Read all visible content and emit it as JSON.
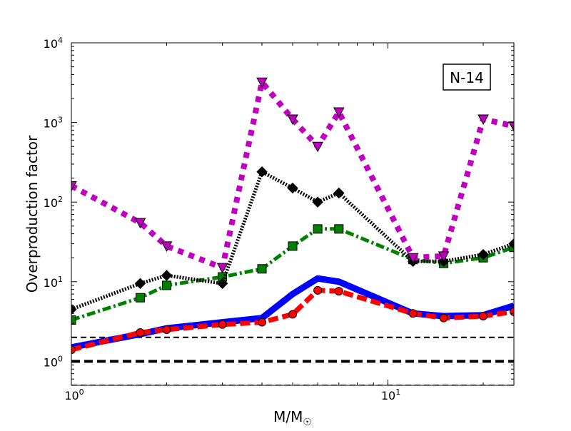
{
  "chart_data": {
    "type": "line",
    "title": "",
    "annotation": "N-14",
    "xlabel": "M/M☉",
    "xlabel_main": "M/M",
    "xlabel_sub": "☉",
    "ylabel": "Overproduction factor",
    "xscale": "log",
    "yscale": "log",
    "xlim": [
      1,
      25
    ],
    "ylim": [
      0.5,
      10000
    ],
    "xticks": [
      {
        "value": 1,
        "base": "10",
        "exp": "0"
      },
      {
        "value": 10,
        "base": "10",
        "exp": "1"
      }
    ],
    "yticks": [
      {
        "value": 1,
        "base": "10",
        "exp": "0"
      },
      {
        "value": 10,
        "base": "10",
        "exp": "1"
      },
      {
        "value": 100,
        "base": "10",
        "exp": "2"
      },
      {
        "value": 1000,
        "base": "10",
        "exp": "3"
      },
      {
        "value": 10000,
        "base": "10",
        "exp": "4"
      }
    ],
    "reference_lines": [
      {
        "y": 2,
        "color": "#000000",
        "style": "dashed-thin"
      },
      {
        "y": 1,
        "color": "#000000",
        "style": "dashed-thick"
      },
      {
        "y": 0.5,
        "color": "#000000",
        "style": "dashed-thin"
      }
    ],
    "x": [
      1,
      1.65,
      2,
      3,
      4,
      5,
      6,
      7,
      12,
      15,
      20,
      25
    ],
    "series": [
      {
        "color": "#0000ff",
        "line": "solid",
        "marker": "none",
        "values": [
          1.5,
          2.2,
          2.6,
          3.1,
          3.5,
          7.0,
          11.0,
          10.0,
          4.0,
          3.7,
          3.8,
          5.0
        ]
      },
      {
        "color": "#ff0000",
        "line": "dashed",
        "marker": "circle",
        "values": [
          1.4,
          2.3,
          2.5,
          2.9,
          3.1,
          3.9,
          7.8,
          7.6,
          4.0,
          3.5,
          3.7,
          4.2
        ]
      },
      {
        "color": "#008000",
        "line": "dashdot",
        "marker": "square",
        "values": [
          3.3,
          6.3,
          9.0,
          11.5,
          14.5,
          28.0,
          46.0,
          46.0,
          19.0,
          17.0,
          20.0,
          27.0
        ]
      },
      {
        "color": "#000000",
        "line": "dotted",
        "marker": "diamond",
        "values": [
          4.5,
          9.5,
          12.0,
          9.5,
          240,
          150,
          100,
          130,
          18.0,
          18.0,
          22.0,
          30.0
        ]
      },
      {
        "color": "#bf00bf",
        "line": "dotted-thick",
        "marker": "triangle-down",
        "values": [
          160,
          55,
          28,
          15,
          3200,
          1100,
          500,
          1350,
          20,
          21,
          1100,
          900
        ]
      }
    ]
  }
}
